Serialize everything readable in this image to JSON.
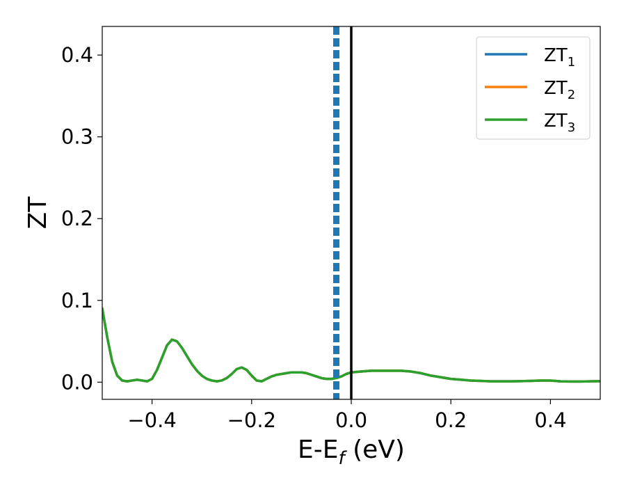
{
  "chart_data": {
    "type": "line",
    "xlabel_main": "E-E",
    "xlabel_sub": "f",
    "xlabel_unit": " (eV)",
    "ylabel": "ZT",
    "xlim": [
      -0.5,
      0.5
    ],
    "ylim": [
      -0.021,
      0.435
    ],
    "xticks": [
      -0.4,
      -0.2,
      0.0,
      0.2,
      0.4
    ],
    "xtick_labels": [
      "−0.4",
      "−0.2",
      "0.0",
      "0.2",
      "0.4"
    ],
    "yticks": [
      0.0,
      0.1,
      0.2,
      0.3,
      0.4
    ],
    "ytick_labels": [
      "0.0",
      "0.1",
      "0.2",
      "0.3",
      "0.4"
    ],
    "grid": false,
    "legend_position": "top-right",
    "vlines": [
      {
        "x": 0.0,
        "color": "#000000",
        "style": "solid"
      },
      {
        "x": -0.03,
        "color": "#1f77b4",
        "style": "dashed"
      }
    ],
    "series": [
      {
        "name": "ZT",
        "sub": "1",
        "color": "#1f77b4",
        "x": [
          -0.5,
          -0.49,
          -0.48,
          -0.47,
          -0.46,
          -0.45,
          -0.44,
          -0.43,
          -0.42,
          -0.41,
          -0.4,
          -0.39,
          -0.38,
          -0.37,
          -0.36,
          -0.35,
          -0.34,
          -0.33,
          -0.32,
          -0.31,
          -0.3,
          -0.29,
          -0.28,
          -0.27,
          -0.26,
          -0.25,
          -0.24,
          -0.23,
          -0.22,
          -0.21,
          -0.2,
          -0.19,
          -0.18,
          -0.17,
          -0.16,
          -0.15,
          -0.14,
          -0.13,
          -0.12,
          -0.11,
          -0.1,
          -0.09,
          -0.08,
          -0.07,
          -0.06,
          -0.05,
          -0.04,
          -0.03,
          -0.02,
          -0.01,
          0.0,
          0.02,
          0.04,
          0.06,
          0.08,
          0.1,
          0.12,
          0.14,
          0.16,
          0.18,
          0.2,
          0.22,
          0.24,
          0.26,
          0.28,
          0.3,
          0.32,
          0.34,
          0.36,
          0.38,
          0.4,
          0.42,
          0.44,
          0.46,
          0.48,
          0.5
        ],
        "y": [
          0.09,
          0.055,
          0.025,
          0.008,
          0.002,
          0.001,
          0.002,
          0.003,
          0.002,
          0.001,
          0.004,
          0.015,
          0.03,
          0.045,
          0.052,
          0.05,
          0.042,
          0.032,
          0.022,
          0.014,
          0.008,
          0.004,
          0.002,
          0.001,
          0.002,
          0.005,
          0.01,
          0.016,
          0.018,
          0.015,
          0.008,
          0.002,
          0.001,
          0.004,
          0.007,
          0.009,
          0.01,
          0.011,
          0.012,
          0.012,
          0.012,
          0.011,
          0.009,
          0.007,
          0.005,
          0.004,
          0.004,
          0.005,
          0.007,
          0.01,
          0.012,
          0.013,
          0.014,
          0.014,
          0.014,
          0.014,
          0.013,
          0.011,
          0.008,
          0.006,
          0.004,
          0.003,
          0.002,
          0.0015,
          0.001,
          0.001,
          0.001,
          0.0012,
          0.0015,
          0.002,
          0.002,
          0.001,
          0.0008,
          0.0008,
          0.001,
          0.0012
        ]
      },
      {
        "name": "ZT",
        "sub": "2",
        "color": "#ff7f0e",
        "x": [
          -0.5,
          -0.49,
          -0.48,
          -0.47,
          -0.46,
          -0.45,
          -0.44,
          -0.43,
          -0.42,
          -0.41,
          -0.4,
          -0.39,
          -0.38,
          -0.37,
          -0.36,
          -0.35,
          -0.34,
          -0.33,
          -0.32,
          -0.31,
          -0.3,
          -0.29,
          -0.28,
          -0.27,
          -0.26,
          -0.25,
          -0.24,
          -0.23,
          -0.22,
          -0.21,
          -0.2,
          -0.19,
          -0.18,
          -0.17,
          -0.16,
          -0.15,
          -0.14,
          -0.13,
          -0.12,
          -0.11,
          -0.1,
          -0.09,
          -0.08,
          -0.07,
          -0.06,
          -0.05,
          -0.04,
          -0.03,
          -0.02,
          -0.01,
          0.0,
          0.02,
          0.04,
          0.06,
          0.08,
          0.1,
          0.12,
          0.14,
          0.16,
          0.18,
          0.2,
          0.22,
          0.24,
          0.26,
          0.28,
          0.3,
          0.32,
          0.34,
          0.36,
          0.38,
          0.4,
          0.42,
          0.44,
          0.46,
          0.48,
          0.5
        ],
        "y": [
          0.09,
          0.055,
          0.025,
          0.008,
          0.002,
          0.001,
          0.002,
          0.003,
          0.002,
          0.001,
          0.004,
          0.015,
          0.03,
          0.045,
          0.052,
          0.05,
          0.042,
          0.032,
          0.022,
          0.014,
          0.008,
          0.004,
          0.002,
          0.001,
          0.002,
          0.005,
          0.01,
          0.016,
          0.018,
          0.015,
          0.008,
          0.002,
          0.001,
          0.004,
          0.007,
          0.009,
          0.01,
          0.011,
          0.012,
          0.012,
          0.012,
          0.011,
          0.009,
          0.007,
          0.005,
          0.004,
          0.004,
          0.005,
          0.007,
          0.01,
          0.012,
          0.013,
          0.014,
          0.014,
          0.014,
          0.014,
          0.013,
          0.011,
          0.008,
          0.006,
          0.004,
          0.003,
          0.002,
          0.0015,
          0.001,
          0.001,
          0.001,
          0.0012,
          0.0015,
          0.002,
          0.002,
          0.001,
          0.0008,
          0.0008,
          0.001,
          0.0012
        ]
      },
      {
        "name": "ZT",
        "sub": "3",
        "color": "#2ca02c",
        "x": [
          -0.5,
          -0.49,
          -0.48,
          -0.47,
          -0.46,
          -0.45,
          -0.44,
          -0.43,
          -0.42,
          -0.41,
          -0.4,
          -0.39,
          -0.38,
          -0.37,
          -0.36,
          -0.35,
          -0.34,
          -0.33,
          -0.32,
          -0.31,
          -0.3,
          -0.29,
          -0.28,
          -0.27,
          -0.26,
          -0.25,
          -0.24,
          -0.23,
          -0.22,
          -0.21,
          -0.2,
          -0.19,
          -0.18,
          -0.17,
          -0.16,
          -0.15,
          -0.14,
          -0.13,
          -0.12,
          -0.11,
          -0.1,
          -0.09,
          -0.08,
          -0.07,
          -0.06,
          -0.05,
          -0.04,
          -0.03,
          -0.02,
          -0.01,
          0.0,
          0.02,
          0.04,
          0.06,
          0.08,
          0.1,
          0.12,
          0.14,
          0.16,
          0.18,
          0.2,
          0.22,
          0.24,
          0.26,
          0.28,
          0.3,
          0.32,
          0.34,
          0.36,
          0.38,
          0.4,
          0.42,
          0.44,
          0.46,
          0.48,
          0.5
        ],
        "y": [
          0.09,
          0.055,
          0.025,
          0.008,
          0.002,
          0.001,
          0.002,
          0.003,
          0.002,
          0.001,
          0.004,
          0.015,
          0.03,
          0.045,
          0.052,
          0.05,
          0.042,
          0.032,
          0.022,
          0.014,
          0.008,
          0.004,
          0.002,
          0.001,
          0.002,
          0.005,
          0.01,
          0.016,
          0.018,
          0.015,
          0.008,
          0.002,
          0.001,
          0.004,
          0.007,
          0.009,
          0.01,
          0.011,
          0.012,
          0.012,
          0.012,
          0.011,
          0.009,
          0.007,
          0.005,
          0.004,
          0.004,
          0.005,
          0.007,
          0.01,
          0.012,
          0.013,
          0.014,
          0.014,
          0.014,
          0.014,
          0.013,
          0.011,
          0.008,
          0.006,
          0.004,
          0.003,
          0.002,
          0.0015,
          0.001,
          0.001,
          0.001,
          0.0012,
          0.0015,
          0.002,
          0.002,
          0.001,
          0.0008,
          0.0008,
          0.001,
          0.0012
        ]
      }
    ]
  }
}
